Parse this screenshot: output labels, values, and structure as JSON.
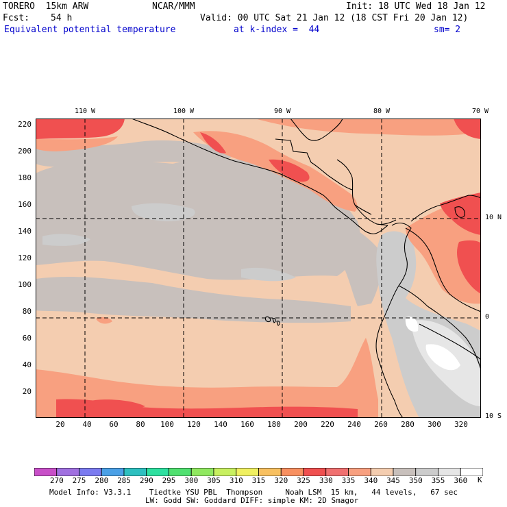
{
  "header": {
    "model": "TORERO  15km ARW",
    "org": "NCAR/MMM",
    "init": "Init: 18 UTC Wed 18 Jan 12",
    "fcst_label": "Fcst:",
    "fcst_hours": "54 h",
    "valid": "Valid: 00 UTC Sat 21 Jan 12 (18 CST Fri 20 Jan 12)",
    "field": "Equivalent potential temperature",
    "level": "at k-index =  44",
    "smooth": "sm= 2"
  },
  "map": {
    "lon_labels": [
      "110 W",
      "100 W",
      "90 W",
      "80 W",
      "70 W"
    ],
    "lat_labels": [
      "10 N",
      "0",
      "10 S"
    ],
    "y_ticks": [
      "220",
      "200",
      "180",
      "160",
      "140",
      "120",
      "100",
      "80",
      "60",
      "40",
      "20"
    ],
    "x_ticks": [
      "20",
      "40",
      "60",
      "80",
      "100",
      "120",
      "140",
      "160",
      "180",
      "200",
      "220",
      "240",
      "260",
      "280",
      "300",
      "320"
    ],
    "grid_x_range": [
      1,
      334
    ],
    "grid_y_range": [
      1,
      224
    ]
  },
  "colorbar": {
    "unit": "K",
    "levels": [
      "270",
      "275",
      "280",
      "285",
      "290",
      "295",
      "300",
      "305",
      "310",
      "315",
      "320",
      "325",
      "330",
      "335",
      "340",
      "345",
      "350",
      "355",
      "360"
    ],
    "colors": [
      "#c84fc8",
      "#a070e0",
      "#7b7bf0",
      "#4aa0e6",
      "#2ec0c0",
      "#2ee0a0",
      "#50e070",
      "#90e860",
      "#c8f060",
      "#f0f060",
      "#f8c060",
      "#f89060",
      "#f05050",
      "#f07070",
      "#f8a080",
      "#f4cdb0",
      "#c8c0bc",
      "#cccccc",
      "#e6e6e6",
      "#ffffff"
    ]
  },
  "footer": {
    "line1": "Model Info: V3.3.1    Tiedtke YSU PBL  Thompson     Noah LSM  15 km,   44 levels,   67 sec",
    "line2": "LW: Godd SW: Goddard DIFF: simple KM: 2D Smagor"
  }
}
